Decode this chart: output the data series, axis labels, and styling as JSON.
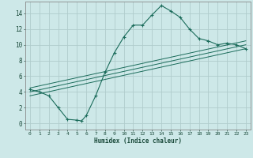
{
  "xlabel": "Humidex (Indice chaleur)",
  "ylabel": "",
  "bg_color": "#cde8e8",
  "line_color": "#1a6b5a",
  "grid_color": "#b0cccc",
  "xlim": [
    -0.5,
    23.5
  ],
  "ylim": [
    -0.8,
    15.5
  ],
  "xticks": [
    0,
    1,
    2,
    3,
    4,
    5,
    6,
    7,
    8,
    9,
    10,
    11,
    12,
    13,
    14,
    15,
    16,
    17,
    18,
    19,
    20,
    21,
    22,
    23
  ],
  "yticks": [
    0,
    2,
    4,
    6,
    8,
    10,
    12,
    14
  ],
  "main_x": [
    0,
    1,
    2,
    3,
    4,
    5,
    5.5,
    6,
    7,
    8,
    9,
    10,
    11,
    12,
    13,
    14,
    15,
    16,
    17,
    18,
    19,
    20,
    21,
    22,
    23
  ],
  "main_y": [
    4.3,
    4.0,
    3.5,
    2.0,
    0.5,
    0.4,
    0.3,
    1.0,
    3.5,
    6.5,
    9.0,
    11.0,
    12.5,
    12.5,
    13.8,
    15.0,
    14.3,
    13.5,
    12.0,
    10.8,
    10.5,
    10.0,
    10.2,
    10.0,
    9.5
  ],
  "regression_lines": [
    {
      "x": [
        0,
        23
      ],
      "y": [
        4.5,
        10.5
      ]
    },
    {
      "x": [
        0,
        23
      ],
      "y": [
        4.0,
        10.0
      ]
    },
    {
      "x": [
        0,
        23
      ],
      "y": [
        3.5,
        9.5
      ]
    }
  ]
}
